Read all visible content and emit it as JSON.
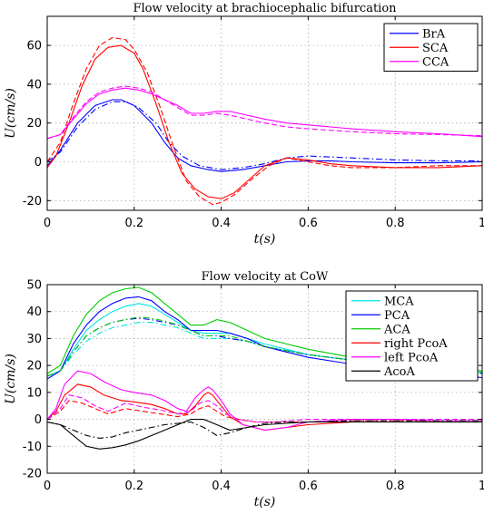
{
  "colors": {
    "blue": "#0000ff",
    "red": "#ff0000",
    "magenta": "#ff00ff",
    "cyan": "#00e5e5",
    "green": "#00cc00",
    "black": "#000000"
  },
  "chart_data": [
    {
      "type": "line",
      "title": "Flow velocity at brachiocephalic bifurcation",
      "xlabel": "t(s)",
      "ylabel": "U(cm/s)",
      "xlim": [
        0,
        1
      ],
      "ylim": [
        -25,
        75
      ],
      "xticks": [
        0,
        0.2,
        0.4,
        0.6,
        0.8,
        1
      ],
      "yticks": [
        -20,
        0,
        20,
        40,
        60
      ],
      "grid": true,
      "legend_position": "top-right",
      "series": [
        {
          "name": "BrA",
          "color": "blue",
          "dash": "solid",
          "x": [
            0,
            0.03,
            0.07,
            0.11,
            0.15,
            0.17,
            0.2,
            0.24,
            0.27,
            0.3,
            0.33,
            0.37,
            0.4,
            0.45,
            0.5,
            0.55,
            0.6,
            0.65,
            0.7,
            0.8,
            0.9,
            1.0
          ],
          "y": [
            -2,
            6,
            20,
            29,
            32,
            32,
            29,
            20,
            10,
            2,
            -2,
            -4,
            -5,
            -4,
            -2,
            0,
            0.5,
            0.5,
            0,
            -0.5,
            -0.5,
            0
          ]
        },
        {
          "name": "",
          "color": "blue",
          "dash": "dashdot",
          "x": [
            0,
            0.03,
            0.07,
            0.11,
            0.15,
            0.18,
            0.21,
            0.25,
            0.28,
            0.31,
            0.35,
            0.4,
            0.45,
            0.5,
            0.55,
            0.6,
            0.7,
            0.8,
            0.9,
            1.0
          ],
          "y": [
            0,
            5,
            18,
            27,
            31,
            31,
            28,
            20,
            10,
            3,
            -2,
            -4,
            -3,
            -1,
            2,
            3,
            2,
            1,
            0.5,
            0.5
          ]
        },
        {
          "name": "SCA",
          "color": "red",
          "dash": "solid",
          "x": [
            0,
            0.02,
            0.05,
            0.08,
            0.11,
            0.14,
            0.17,
            0.2,
            0.22,
            0.25,
            0.28,
            0.31,
            0.34,
            0.37,
            0.4,
            0.43,
            0.47,
            0.5,
            0.55,
            0.6,
            0.65,
            0.7,
            0.8,
            0.9,
            1.0
          ],
          "y": [
            -3,
            3,
            20,
            39,
            53,
            59,
            60,
            56,
            48,
            30,
            10,
            -6,
            -14,
            -18,
            -19,
            -16,
            -8,
            -2,
            2,
            1,
            -1,
            -2,
            -3,
            -3,
            -2
          ]
        },
        {
          "name": "",
          "color": "red",
          "dash": "dash",
          "x": [
            0,
            0.03,
            0.06,
            0.09,
            0.12,
            0.15,
            0.18,
            0.2,
            0.23,
            0.26,
            0.29,
            0.32,
            0.35,
            0.38,
            0.4,
            0.43,
            0.47,
            0.51,
            0.55,
            0.6,
            0.65,
            0.7,
            0.8,
            0.9,
            1.0
          ],
          "y": [
            0,
            10,
            30,
            48,
            60,
            64,
            63,
            58,
            46,
            28,
            8,
            -10,
            -18,
            -22,
            -21,
            -17,
            -9,
            -2,
            2,
            0,
            -2,
            -3,
            -3,
            -2,
            -2
          ]
        },
        {
          "name": "CCA",
          "color": "magenta",
          "dash": "solid",
          "x": [
            0,
            0.03,
            0.06,
            0.09,
            0.12,
            0.15,
            0.18,
            0.21,
            0.24,
            0.27,
            0.3,
            0.33,
            0.36,
            0.39,
            0.42,
            0.46,
            0.5,
            0.55,
            0.6,
            0.7,
            0.8,
            0.9,
            1.0
          ],
          "y": [
            12,
            14,
            22,
            30,
            35,
            37,
            38,
            37,
            35,
            32,
            29,
            25,
            25,
            26,
            26,
            24,
            22,
            20,
            19,
            17,
            15.5,
            14.5,
            13
          ]
        },
        {
          "name": "",
          "color": "magenta",
          "dash": "dash",
          "x": [
            0,
            0.03,
            0.06,
            0.09,
            0.12,
            0.15,
            0.18,
            0.21,
            0.24,
            0.27,
            0.3,
            0.33,
            0.36,
            0.39,
            0.42,
            0.46,
            0.5,
            0.55,
            0.6,
            0.7,
            0.8,
            0.9,
            1.0
          ],
          "y": [
            12,
            14,
            23,
            31,
            36,
            38,
            39,
            38,
            36,
            32,
            28,
            24,
            24,
            25,
            24,
            22,
            20,
            18,
            17,
            15.5,
            14.5,
            14,
            13.5
          ]
        }
      ]
    },
    {
      "type": "line",
      "title": "Flow velocity at CoW",
      "xlabel": "t(s)",
      "ylabel": "U(cm/s)",
      "xlim": [
        0,
        1
      ],
      "ylim": [
        -20,
        50
      ],
      "xticks": [
        0,
        0.2,
        0.4,
        0.6,
        0.8,
        1
      ],
      "yticks": [
        -20,
        -10,
        0,
        10,
        20,
        30,
        40,
        50
      ],
      "grid": true,
      "legend_position": "top-right",
      "series": [
        {
          "name": "MCA",
          "color": "cyan",
          "dash": "solid",
          "x": [
            0,
            0.03,
            0.06,
            0.09,
            0.12,
            0.15,
            0.18,
            0.21,
            0.24,
            0.27,
            0.3,
            0.33,
            0.36,
            0.39,
            0.42,
            0.46,
            0.5,
            0.55,
            0.6,
            0.7,
            0.8,
            0.9,
            1.0
          ],
          "y": [
            16,
            18,
            26,
            33,
            37,
            40,
            42,
            43,
            42,
            39,
            36,
            33,
            32,
            32,
            32,
            30,
            28,
            26,
            24,
            22,
            20,
            18.5,
            17.5
          ]
        },
        {
          "name": "",
          "color": "cyan",
          "dash": "dashdot",
          "x": [
            0,
            0.03,
            0.06,
            0.09,
            0.12,
            0.15,
            0.18,
            0.21,
            0.24,
            0.27,
            0.3,
            0.33,
            0.36,
            0.39,
            0.42,
            0.46,
            0.5,
            0.55,
            0.6,
            0.7,
            0.8,
            0.9,
            1.0
          ],
          "y": [
            16,
            18,
            24,
            29,
            32,
            34,
            35,
            36,
            36,
            35,
            34,
            32,
            30,
            30,
            30,
            29,
            27,
            25.5,
            24,
            22,
            20,
            18.5,
            17.5
          ]
        },
        {
          "name": "PCA",
          "color": "blue",
          "dash": "solid",
          "x": [
            0,
            0.03,
            0.06,
            0.09,
            0.12,
            0.15,
            0.18,
            0.21,
            0.24,
            0.27,
            0.3,
            0.33,
            0.36,
            0.39,
            0.42,
            0.46,
            0.5,
            0.55,
            0.6,
            0.7,
            0.8,
            0.9,
            1.0
          ],
          "y": [
            15,
            18,
            28,
            35,
            40,
            43,
            45,
            45.5,
            44,
            40,
            37,
            33,
            33,
            33,
            32,
            30,
            27,
            25,
            23,
            20.5,
            18.5,
            17,
            15.5
          ]
        },
        {
          "name": "",
          "color": "blue",
          "dash": "dashdot",
          "x": [
            0,
            0.03,
            0.06,
            0.09,
            0.12,
            0.15,
            0.18,
            0.21,
            0.24,
            0.27,
            0.3,
            0.33,
            0.36,
            0.39,
            0.42,
            0.46,
            0.5,
            0.55,
            0.6,
            0.7,
            0.8,
            0.9,
            1.0
          ],
          "y": [
            16,
            18,
            25,
            31,
            34,
            36,
            37,
            37.5,
            37,
            36,
            35,
            33,
            31,
            31,
            30,
            29,
            27,
            25.5,
            24,
            22,
            20,
            18.5,
            17
          ]
        },
        {
          "name": "ACA",
          "color": "green",
          "dash": "solid",
          "x": [
            0,
            0.03,
            0.06,
            0.09,
            0.12,
            0.15,
            0.18,
            0.21,
            0.24,
            0.27,
            0.3,
            0.33,
            0.36,
            0.39,
            0.42,
            0.46,
            0.5,
            0.55,
            0.6,
            0.7,
            0.8,
            0.9,
            1.0
          ],
          "y": [
            17,
            20,
            31,
            39,
            44,
            47,
            48.5,
            49,
            47,
            43,
            39,
            35,
            35,
            37,
            36,
            33,
            30,
            28,
            26,
            23,
            21,
            19.5,
            18
          ]
        },
        {
          "name": "",
          "color": "green",
          "dash": "dashdot",
          "x": [
            0,
            0.03,
            0.06,
            0.09,
            0.12,
            0.15,
            0.18,
            0.21,
            0.24,
            0.27,
            0.3,
            0.33,
            0.36,
            0.39,
            0.42,
            0.46,
            0.5,
            0.55,
            0.6,
            0.7,
            0.8,
            0.9,
            1.0
          ],
          "y": [
            16,
            18,
            25,
            31,
            34,
            36,
            37,
            38,
            37.5,
            36.5,
            35,
            33,
            31,
            31,
            31,
            29,
            27,
            25.5,
            24,
            22,
            20,
            18.5,
            17.5
          ]
        },
        {
          "name": "right PcoA",
          "color": "red",
          "dash": "solid",
          "x": [
            0,
            0.02,
            0.04,
            0.07,
            0.1,
            0.13,
            0.17,
            0.2,
            0.24,
            0.27,
            0.3,
            0.32,
            0.34,
            0.36,
            0.37,
            0.38,
            0.4,
            0.42,
            0.45,
            0.5,
            0.55,
            0.6,
            0.7,
            0.8,
            0.9,
            1.0
          ],
          "y": [
            0,
            3,
            9,
            13,
            12,
            9,
            7,
            6.5,
            5.5,
            4,
            2,
            2,
            5,
            9,
            10,
            9,
            5,
            1,
            -2,
            -4,
            -3,
            -2,
            -1,
            -1,
            -1,
            -1
          ]
        },
        {
          "name": "",
          "color": "red",
          "dash": "dash",
          "x": [
            0,
            0.03,
            0.05,
            0.08,
            0.11,
            0.14,
            0.18,
            0.22,
            0.26,
            0.3,
            0.33,
            0.35,
            0.37,
            0.39,
            0.41,
            0.44,
            0.48,
            0.52,
            0.56,
            0.6,
            0.7,
            0.8,
            0.9,
            1.0
          ],
          "y": [
            0,
            3,
            7,
            6,
            4,
            2,
            4,
            3,
            2,
            1,
            2,
            4,
            5,
            3,
            1,
            0,
            -1,
            -1,
            -1,
            -1,
            -0.5,
            -0.5,
            -0.5,
            -0.5
          ]
        },
        {
          "name": "left PcoA",
          "color": "magenta",
          "dash": "solid",
          "x": [
            0,
            0.02,
            0.04,
            0.07,
            0.1,
            0.13,
            0.17,
            0.2,
            0.24,
            0.27,
            0.3,
            0.32,
            0.34,
            0.36,
            0.37,
            0.38,
            0.4,
            0.42,
            0.45,
            0.5,
            0.55,
            0.6,
            0.7,
            0.8,
            0.9,
            1.0
          ],
          "y": [
            0,
            4,
            13,
            18,
            17,
            14,
            11,
            10,
            9,
            7,
            4,
            3,
            8,
            11,
            12,
            11,
            7,
            2,
            -2,
            -4,
            -3,
            -1,
            0,
            0,
            -0.5,
            -0.5
          ]
        },
        {
          "name": "",
          "color": "magenta",
          "dash": "dash",
          "x": [
            0,
            0.03,
            0.05,
            0.08,
            0.11,
            0.14,
            0.18,
            0.22,
            0.26,
            0.3,
            0.33,
            0.35,
            0.37,
            0.39,
            0.41,
            0.44,
            0.48,
            0.52,
            0.56,
            0.6,
            0.7,
            0.8,
            0.9,
            1.0
          ],
          "y": [
            0,
            4,
            9,
            8,
            5,
            3,
            6,
            4.5,
            3.5,
            2,
            3,
            6,
            7,
            5,
            2,
            0,
            -1,
            -1,
            -0.5,
            0,
            0,
            0,
            0,
            0
          ]
        },
        {
          "name": "AcoA",
          "color": "black",
          "dash": "solid",
          "x": [
            0,
            0.03,
            0.06,
            0.09,
            0.12,
            0.15,
            0.18,
            0.21,
            0.24,
            0.27,
            0.3,
            0.33,
            0.36,
            0.39,
            0.42,
            0.46,
            0.5,
            0.55,
            0.6,
            0.7,
            0.8,
            0.9,
            1.0
          ],
          "y": [
            -1,
            -2,
            -6,
            -10,
            -11,
            -10.5,
            -9.5,
            -8,
            -6,
            -4,
            -2,
            0,
            0,
            -2,
            -4,
            -3,
            -2,
            -1.5,
            -1,
            -1,
            -1,
            -1,
            -1
          ]
        },
        {
          "name": "",
          "color": "black",
          "dash": "dashdot",
          "x": [
            0,
            0.03,
            0.06,
            0.09,
            0.12,
            0.15,
            0.18,
            0.21,
            0.24,
            0.27,
            0.3,
            0.33,
            0.36,
            0.39,
            0.42,
            0.46,
            0.5,
            0.55,
            0.6,
            0.7,
            0.8,
            0.9,
            1.0
          ],
          "y": [
            -1,
            -2,
            -4,
            -6,
            -7,
            -6.5,
            -5,
            -4,
            -3,
            -2,
            -1.5,
            -1,
            -3,
            -6,
            -5,
            -3,
            -1.5,
            -1,
            -1,
            -0.5,
            -0.5,
            -0.5,
            -0.5
          ]
        }
      ]
    }
  ]
}
